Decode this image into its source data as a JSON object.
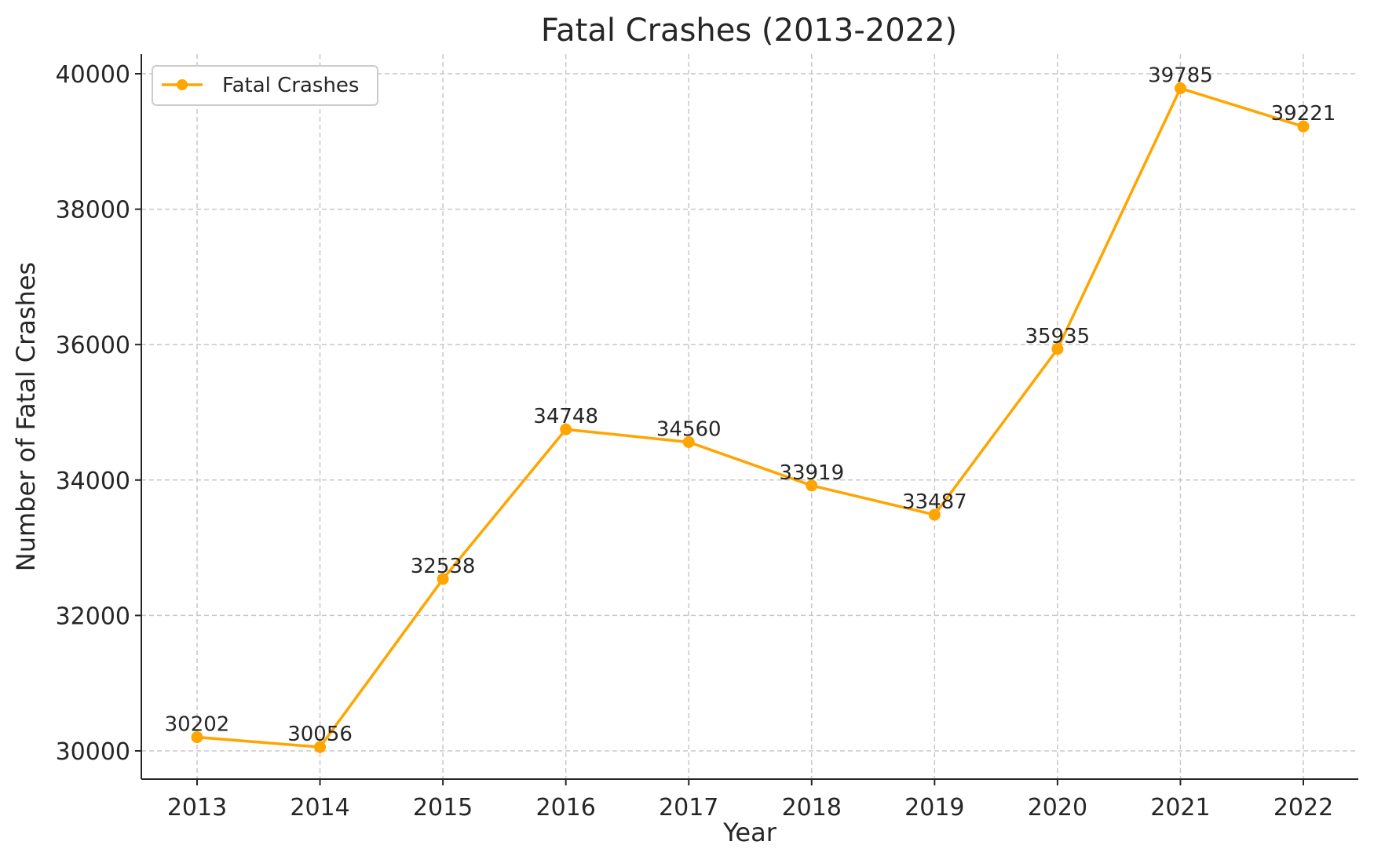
{
  "chart_data": {
    "type": "line",
    "title": "Fatal Crashes (2013-2022)",
    "xlabel": "Year",
    "ylabel": "Number of Fatal Crashes",
    "x": [
      "2013",
      "2014",
      "2015",
      "2016",
      "2017",
      "2018",
      "2019",
      "2020",
      "2021",
      "2022"
    ],
    "series": [
      {
        "name": "Fatal Crashes",
        "color": "#FFA500",
        "marker": "circle",
        "values": [
          30202,
          30056,
          32538,
          34748,
          34560,
          33919,
          33487,
          35935,
          39785,
          39221
        ]
      }
    ],
    "data_labels": [
      "30202",
      "30056",
      "32538",
      "34748",
      "34560",
      "33919",
      "33487",
      "35935",
      "39785",
      "39221"
    ],
    "yticks": [
      "30000",
      "32000",
      "34000",
      "36000",
      "38000",
      "40000"
    ],
    "ylim": [
      29580,
      40280
    ],
    "grid": true,
    "legend": "top-left"
  }
}
